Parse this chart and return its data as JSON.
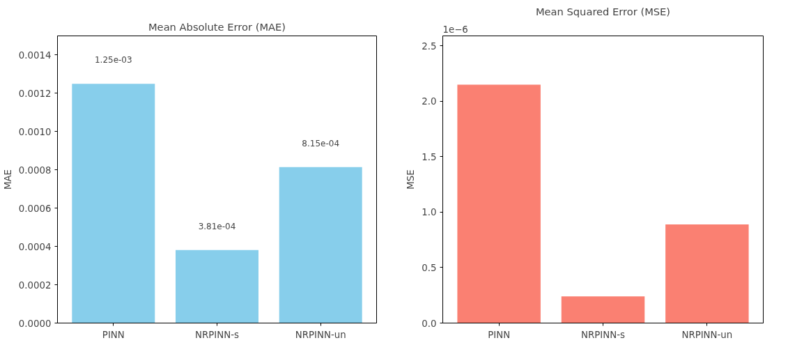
{
  "chart_data": [
    {
      "type": "bar",
      "title": "Mean Absolute Error (MAE)",
      "ylabel": "MAE",
      "categories": [
        "PINN",
        "NRPINN-s",
        "NRPINN-un"
      ],
      "values": [
        0.00125,
        0.000381,
        0.000815
      ],
      "color": "#87ceeb",
      "value_labels": [
        "1.25e-03",
        "3.81e-04",
        "8.15e-04"
      ],
      "ylim": [
        0,
        0.0015
      ],
      "yticks": [
        {
          "value": 0,
          "label": "0.0000"
        },
        {
          "value": 0.0002,
          "label": "0.0002"
        },
        {
          "value": 0.0004,
          "label": "0.0004"
        },
        {
          "value": 0.0006,
          "label": "0.0006"
        },
        {
          "value": 0.0008,
          "label": "0.0008"
        },
        {
          "value": 0.001,
          "label": "0.0010"
        },
        {
          "value": 0.0012,
          "label": "0.0012"
        },
        {
          "value": 0.0014,
          "label": "0.0014"
        }
      ]
    },
    {
      "type": "bar",
      "title": "Mean Squared Error (MSE)",
      "ylabel": "MSE",
      "categories": [
        "PINN",
        "NRPINN-s",
        "NRPINN-un"
      ],
      "values": [
        2.15,
        0.24,
        0.89
      ],
      "color": "#fa8072",
      "annotations": [
        "1e−6"
      ],
      "ylim": [
        0,
        2.59
      ],
      "yticks": [
        {
          "value": 0,
          "label": "0.0"
        },
        {
          "value": 0.5,
          "label": "0.5"
        },
        {
          "value": 1,
          "label": "1.0"
        },
        {
          "value": 1.5,
          "label": "1.5"
        },
        {
          "value": 2,
          "label": "2.0"
        },
        {
          "value": 2.5,
          "label": "2.5"
        }
      ]
    }
  ]
}
